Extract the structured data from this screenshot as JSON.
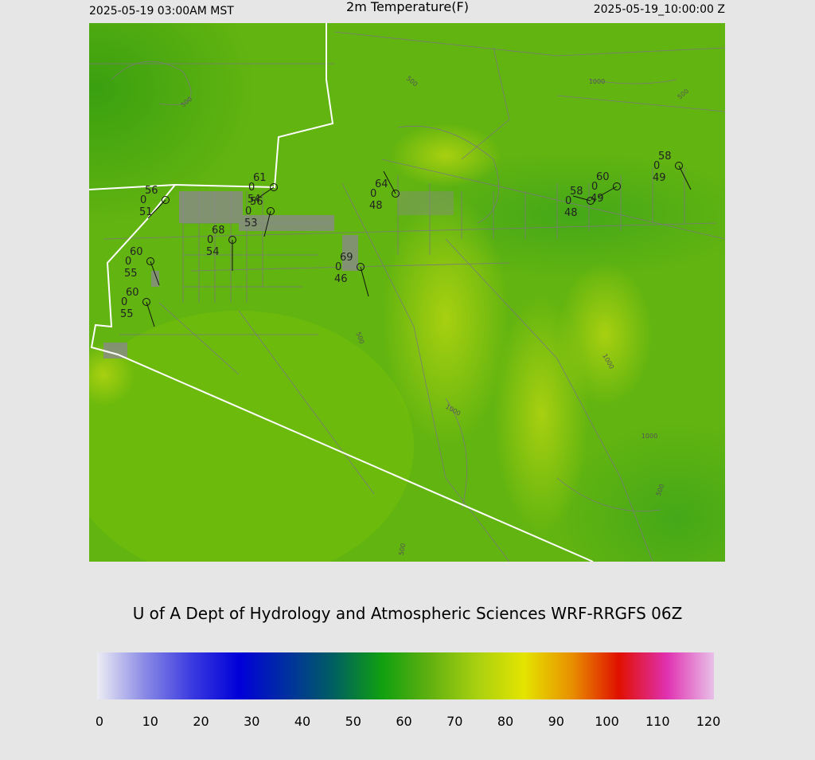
{
  "header": {
    "left": "2025-05-19 03:00AM MST",
    "title": "2m Temperature(F)",
    "right": "2025-05-19_10:00:00 Z"
  },
  "map": {
    "stations": [
      {
        "temp": 56,
        "mark": 0,
        "dew": 51
      },
      {
        "temp": 61,
        "mark": 0,
        "dew": 54
      },
      {
        "temp": 56,
        "mark": 0,
        "dew": 53
      },
      {
        "temp": 68,
        "mark": 0,
        "dew": 54
      },
      {
        "temp": 60,
        "mark": 0,
        "dew": 55
      },
      {
        "temp": 60,
        "mark": 0,
        "dew": 55
      },
      {
        "temp": 69,
        "mark": 0,
        "dew": 46
      },
      {
        "temp": 64,
        "mark": 0,
        "dew": 48
      },
      {
        "temp": 58,
        "mark": 0,
        "dew": 48
      },
      {
        "temp": 60,
        "mark": 0,
        "dew": 49
      },
      {
        "temp": 58,
        "mark": 0,
        "dew": 49
      }
    ],
    "contour_labels": [
      "500",
      "500",
      "1000",
      "500",
      "500",
      "1000",
      "1000",
      "1000",
      "500",
      "500"
    ]
  },
  "credit": "U of A Dept of Hydrology and Atmospheric Sciences WRF-RRGFS 06Z",
  "colorbar": {
    "ticks": [
      0,
      10,
      20,
      30,
      40,
      50,
      60,
      70,
      80,
      90,
      100,
      110,
      120
    ],
    "colors": [
      "#ececf4",
      "#8a8ae6",
      "#3a3ae0",
      "#0000d8",
      "#0030a0",
      "#006060",
      "#10a010",
      "#60b010",
      "#a8d010",
      "#e4e400",
      "#e89000",
      "#e01000",
      "#e030b0",
      "#e8c0e8"
    ]
  }
}
